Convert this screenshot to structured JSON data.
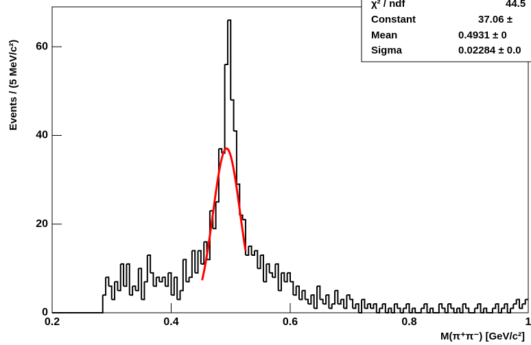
{
  "chart_data": {
    "type": "histogram",
    "xlabel": "M(π⁺π⁻) [GeV/c²]",
    "ylabel": "Events / (5 MeV/c²)",
    "bins": [
      0.2,
      0.205,
      0.21,
      0.215,
      0.22,
      0.225,
      0.23,
      0.235,
      0.24,
      0.245,
      0.25,
      0.255,
      0.26,
      0.265,
      0.27,
      0.275,
      0.28,
      0.285,
      0.29,
      0.295,
      0.3,
      0.305,
      0.31,
      0.315,
      0.32,
      0.325,
      0.33,
      0.335,
      0.34,
      0.345,
      0.35,
      0.355,
      0.36,
      0.365,
      0.37,
      0.375,
      0.38,
      0.385,
      0.39,
      0.395,
      0.4,
      0.405,
      0.41,
      0.415,
      0.42,
      0.425,
      0.43,
      0.435,
      0.44,
      0.445,
      0.45,
      0.455,
      0.46,
      0.465,
      0.47,
      0.475,
      0.48,
      0.485,
      0.49,
      0.495,
      0.5,
      0.505,
      0.51,
      0.515,
      0.52,
      0.525,
      0.53,
      0.535,
      0.54,
      0.545,
      0.55,
      0.555,
      0.56,
      0.565,
      0.57,
      0.575,
      0.58,
      0.585,
      0.59,
      0.595,
      0.6,
      0.605,
      0.61,
      0.615,
      0.62,
      0.625,
      0.63,
      0.635,
      0.64,
      0.645,
      0.65,
      0.655,
      0.66,
      0.665,
      0.67,
      0.675,
      0.68,
      0.685,
      0.69,
      0.695,
      0.7,
      0.705,
      0.71,
      0.715,
      0.72,
      0.725,
      0.73,
      0.735,
      0.74,
      0.745,
      0.75,
      0.755,
      0.76,
      0.765,
      0.77,
      0.775,
      0.78,
      0.785,
      0.79,
      0.795,
      0.8,
      0.805,
      0.81,
      0.815,
      0.82,
      0.825,
      0.83,
      0.835,
      0.84,
      0.845,
      0.85,
      0.855,
      0.86,
      0.865,
      0.87,
      0.875,
      0.88,
      0.885,
      0.89,
      0.895,
      0.9,
      0.905,
      0.91,
      0.915,
      0.92,
      0.925,
      0.93,
      0.935,
      0.94,
      0.945,
      0.95,
      0.955,
      0.96,
      0.965,
      0.97,
      0.975,
      0.98,
      0.985,
      0.99,
      0.995,
      1.0
    ],
    "values": [
      0,
      0,
      0,
      0,
      0,
      0,
      0,
      0,
      0,
      0,
      0,
      0,
      0,
      0,
      0,
      0,
      0,
      4,
      8,
      6,
      3,
      7,
      5,
      11,
      6,
      11,
      4,
      6,
      5,
      10,
      3,
      7,
      13,
      9,
      6,
      8,
      7,
      8,
      6,
      9,
      4,
      8,
      3,
      5,
      12,
      7,
      8,
      14,
      9,
      14,
      11,
      16,
      12,
      23,
      19,
      25,
      37,
      36,
      56,
      66,
      48,
      41,
      29,
      22,
      21,
      13,
      15,
      13,
      14,
      10,
      13,
      7,
      11,
      9,
      8,
      11,
      5,
      9,
      7,
      9,
      7,
      4,
      6,
      3,
      5,
      3,
      2,
      4,
      1,
      6,
      3,
      2,
      4,
      1,
      2,
      5,
      2,
      3,
      1,
      4,
      3,
      1,
      2,
      0,
      3,
      1,
      2,
      1,
      2,
      0,
      1,
      2,
      0,
      1,
      0,
      2,
      1,
      0,
      1,
      2,
      0,
      1,
      0,
      0,
      1,
      2,
      0,
      1,
      0,
      0,
      2,
      1,
      0,
      2,
      1,
      0,
      1,
      0,
      2,
      1,
      0,
      0,
      1,
      2,
      0,
      1,
      0,
      0,
      1,
      2,
      0,
      1,
      2,
      0,
      1,
      2,
      3,
      1,
      2,
      3
    ],
    "color": "#000000",
    "fit": {
      "color": "#ff0000",
      "constant": 37.06,
      "mean": 0.4931,
      "sigma": 0.02284,
      "range": [
        0.452,
        0.525
      ]
    },
    "xlim": [
      0.2,
      1.0
    ],
    "xticks": [
      0.2,
      0.4,
      0.6,
      0.8,
      1
    ],
    "ylim": [
      0,
      69
    ],
    "yticks": [
      0,
      20,
      40,
      60
    ],
    "stats": [
      {
        "label": "χ² / ndf",
        "value": "44.5"
      },
      {
        "label": "Constant",
        "value": "37.06 ±"
      },
      {
        "label": "Mean",
        "value": "0.4931 ± 0"
      },
      {
        "label": "Sigma",
        "value": "0.02284 ± 0.0"
      }
    ]
  }
}
